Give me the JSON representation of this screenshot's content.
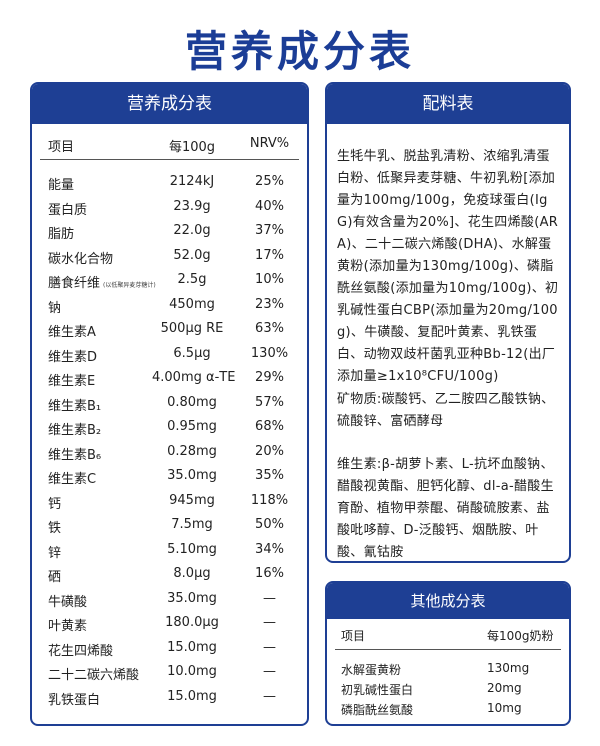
{
  "title": "营养成分表",
  "nutrition": {
    "heading": "营养成分表",
    "columns": [
      "项目",
      "每100g",
      "NRV%"
    ],
    "rows": [
      {
        "name": "能量",
        "value": "2124kJ",
        "nrv": "25%"
      },
      {
        "name": "蛋白质",
        "value": "23.9g",
        "nrv": "40%"
      },
      {
        "name": "脂肪",
        "value": "22.0g",
        "nrv": "37%"
      },
      {
        "name": "碳水化合物",
        "value": "52.0g",
        "nrv": "17%"
      },
      {
        "name": "膳食纤维",
        "note": "(以低聚异麦芽糖计)",
        "value": "2.5g",
        "nrv": "10%"
      },
      {
        "name": "钠",
        "value": "450mg",
        "nrv": "23%"
      },
      {
        "name": "维生素A",
        "value": "500μg RE",
        "nrv": "63%"
      },
      {
        "name": "维生素D",
        "value": "6.5μg",
        "nrv": "130%"
      },
      {
        "name": "维生素E",
        "value": "4.00mg α-TE",
        "nrv": "29%"
      },
      {
        "name": "维生素B₁",
        "value": "0.80mg",
        "nrv": "57%"
      },
      {
        "name": "维生素B₂",
        "value": "0.95mg",
        "nrv": "68%"
      },
      {
        "name": "维生素B₆",
        "value": "0.28mg",
        "nrv": "20%"
      },
      {
        "name": "维生素C",
        "value": "35.0mg",
        "nrv": "35%"
      },
      {
        "name": "钙",
        "value": "945mg",
        "nrv": "118%"
      },
      {
        "name": "铁",
        "value": "7.5mg",
        "nrv": "50%"
      },
      {
        "name": "锌",
        "value": "5.10mg",
        "nrv": "34%"
      },
      {
        "name": "硒",
        "value": "8.0μg",
        "nrv": "16%"
      },
      {
        "name": "牛磺酸",
        "value": "35.0mg",
        "nrv": "—"
      },
      {
        "name": "叶黄素",
        "value": "180.0μg",
        "nrv": "—"
      },
      {
        "name": "花生四烯酸",
        "value": "15.0mg",
        "nrv": "—"
      },
      {
        "name": "二十二碳六烯酸",
        "value": "10.0mg",
        "nrv": "—"
      },
      {
        "name": "乳铁蛋白",
        "value": "15.0mg",
        "nrv": "—"
      }
    ]
  },
  "ingredients": {
    "heading": "配料表",
    "paragraphs": [
      "生牦牛乳、脱盐乳清粉、浓缩乳清蛋白粉、低聚异麦芽糖、牛初乳粉[添加量为100mg/100g，免疫球蛋白(IgG)有效含量为20%]、花生四烯酸(ARA)、二十二碳六烯酸(DHA)、水解蛋黄粉(添加量为130mg/100g)、磷脂酰丝氨酸(添加量为10mg/100g)、初乳碱性蛋白CBP(添加量为20mg/100g)、牛磺酸、复配叶黄素、乳铁蛋白、动物双歧杆菌乳亚种Bb-12(出厂添加量≥1x10⁸CFU/100g)",
      "矿物质:碳酸钙、乙二胺四乙酸铁钠、硫酸锌、富硒酵母",
      "维生素:β-胡萝卜素、L-抗坏血酸钠、醋酸视黄酯、胆钙化醇、dl-a-醋酸生育酚、植物甲萘醌、硝酸硫胺素、盐酸吡哆醇、D-泛酸钙、烟酰胺、叶酸、氰钴胺"
    ]
  },
  "other": {
    "heading": "其他成分表",
    "columns": [
      "项目",
      "每100g奶粉"
    ],
    "rows": [
      [
        "水解蛋黄粉",
        "130mg"
      ],
      [
        "初乳碱性蛋白",
        "20mg"
      ],
      [
        "磷脂酰丝氨酸",
        "10mg"
      ]
    ]
  }
}
